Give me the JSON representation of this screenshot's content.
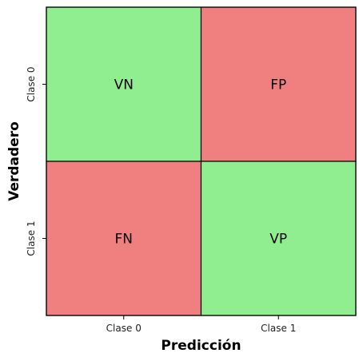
{
  "chart_data": {
    "type": "heatmap",
    "title": "",
    "xlabel": "Predicción",
    "ylabel": "Verdadero",
    "x_categories": [
      "Clase 0",
      "Clase 1"
    ],
    "y_categories": [
      "Clase 0",
      "Clase 1"
    ],
    "cells": [
      [
        "VN",
        "FP"
      ],
      [
        "FN",
        "VP"
      ]
    ],
    "cell_colors": [
      [
        "#90ee90",
        "#f08080"
      ],
      [
        "#f08080",
        "#90ee90"
      ]
    ],
    "grid": false
  }
}
